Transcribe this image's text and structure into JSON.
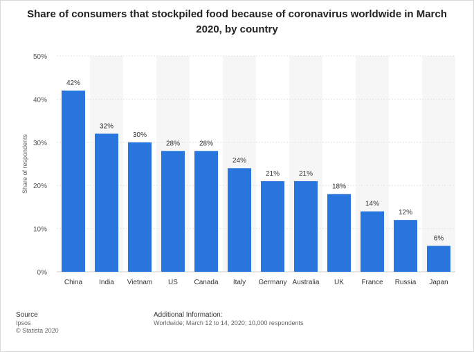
{
  "title": "Share of consumers that stockpiled food because of coronavirus worldwide in March 2020, by country",
  "chart_data": {
    "type": "bar",
    "title": "Share of consumers that stockpiled food because of coronavirus worldwide in March 2020, by country",
    "xlabel": "",
    "ylabel": "Share of respondents",
    "categories": [
      "China",
      "India",
      "Vietnam",
      "US",
      "Canada",
      "Italy",
      "Germany",
      "Australia",
      "UK",
      "France",
      "Russia",
      "Japan"
    ],
    "values": [
      42,
      32,
      30,
      28,
      28,
      24,
      21,
      21,
      18,
      14,
      12,
      6
    ],
    "value_labels": [
      "42%",
      "32%",
      "30%",
      "28%",
      "28%",
      "24%",
      "21%",
      "21%",
      "18%",
      "14%",
      "12%",
      "6%"
    ],
    "ylim": [
      0,
      50
    ],
    "yticks": [
      0,
      10,
      20,
      30,
      40,
      50
    ],
    "ytick_labels": [
      "0%",
      "10%",
      "20%",
      "30%",
      "40%",
      "50%"
    ],
    "grid": true,
    "bar_color": "#2876dd"
  },
  "footer": {
    "source_head": "Source",
    "source_name": "Ipsos",
    "copyright": "© Statista 2020",
    "info_head": "Additional Information:",
    "info_text": "Worldwide; March 12 to 14, 2020; 10,000 respondents"
  }
}
